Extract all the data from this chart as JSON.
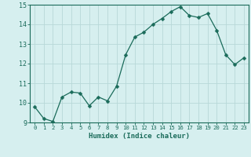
{
  "x": [
    0,
    1,
    2,
    3,
    4,
    5,
    6,
    7,
    8,
    9,
    10,
    11,
    12,
    13,
    14,
    15,
    16,
    17,
    18,
    19,
    20,
    21,
    22,
    23
  ],
  "y": [
    9.8,
    9.2,
    9.05,
    10.3,
    10.55,
    10.5,
    9.85,
    10.3,
    10.1,
    10.85,
    12.45,
    13.35,
    13.6,
    14.0,
    14.3,
    14.65,
    14.9,
    14.45,
    14.35,
    14.55,
    13.7,
    12.45,
    11.95,
    12.3
  ],
  "line_color": "#1a6b5a",
  "marker": "D",
  "marker_size": 2.5,
  "bg_color": "#d6efef",
  "grid_color": "#b8d8d8",
  "tick_color": "#1a6b5a",
  "label_color": "#1a6b5a",
  "xlabel": "Humidex (Indice chaleur)",
  "ylim": [
    9,
    15
  ],
  "xlim": [
    -0.5,
    23.5
  ],
  "yticks": [
    9,
    10,
    11,
    12,
    13,
    14,
    15
  ],
  "xticks": [
    0,
    1,
    2,
    3,
    4,
    5,
    6,
    7,
    8,
    9,
    10,
    11,
    12,
    13,
    14,
    15,
    16,
    17,
    18,
    19,
    20,
    21,
    22,
    23
  ]
}
